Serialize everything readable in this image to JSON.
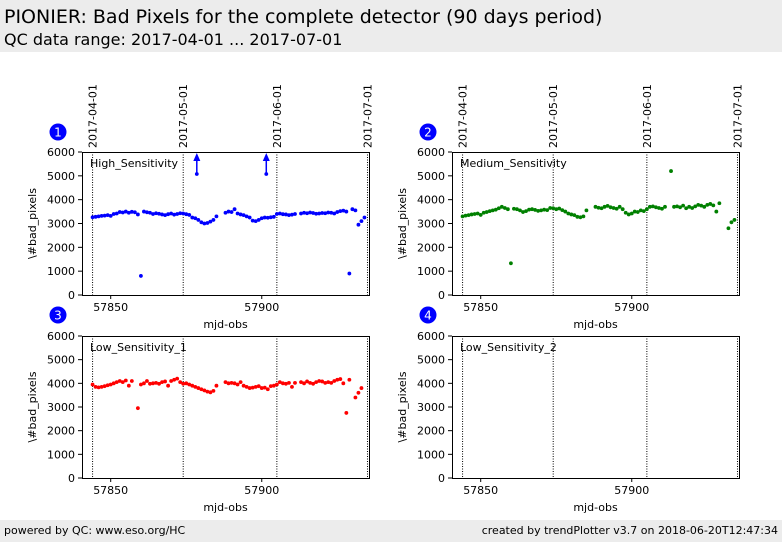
{
  "header": {
    "title": "PIONIER: Bad Pixels for the complete detector (90 days period)",
    "subtitle": "QC data range: 2017-04-01 ... 2017-07-01"
  },
  "footer": {
    "left": "powered by QC: www.eso.org/HC",
    "right": "created by trendPlotter v3.7 on 2018-06-20T12:47:34"
  },
  "chart_data": [
    {
      "type": "scatter",
      "panel_number": "1",
      "label": "High_Sensitivity",
      "color": "#0000ff",
      "xlabel": "mjd-obs",
      "ylabel": "\\#bad_pixels",
      "xlim": [
        57840.5,
        57935.5
      ],
      "ylim": [
        0,
        6000
      ],
      "xticks": [
        57850,
        57900
      ],
      "yticks": [
        0,
        1000,
        2000,
        3000,
        4000,
        5000,
        6000
      ],
      "date_markers": [
        {
          "mjd": 57844,
          "label": "2017-04-01"
        },
        {
          "mjd": 57874,
          "label": "2017-05-01"
        },
        {
          "mjd": 57905,
          "label": "2017-06-01"
        },
        {
          "mjd": 57935,
          "label": "2017-07-01"
        }
      ],
      "arrows": [
        57878.5,
        57901.5
      ],
      "points": [
        [
          57844,
          3260
        ],
        [
          57845,
          3280
        ],
        [
          57846,
          3300
        ],
        [
          57847,
          3320
        ],
        [
          57848,
          3330
        ],
        [
          57849,
          3350
        ],
        [
          57850,
          3320
        ],
        [
          57851,
          3400
        ],
        [
          57852,
          3420
        ],
        [
          57853,
          3480
        ],
        [
          57854,
          3460
        ],
        [
          57855,
          3500
        ],
        [
          57856,
          3450
        ],
        [
          57857,
          3490
        ],
        [
          57858,
          3470
        ],
        [
          57859,
          3380
        ],
        [
          57860,
          800
        ],
        [
          57861,
          3500
        ],
        [
          57862,
          3470
        ],
        [
          57863,
          3450
        ],
        [
          57864,
          3400
        ],
        [
          57865,
          3430
        ],
        [
          57866,
          3410
        ],
        [
          57867,
          3380
        ],
        [
          57868,
          3350
        ],
        [
          57869,
          3390
        ],
        [
          57870,
          3420
        ],
        [
          57871,
          3370
        ],
        [
          57872,
          3400
        ],
        [
          57873,
          3430
        ],
        [
          57874,
          3420
        ],
        [
          57875,
          3390
        ],
        [
          57876,
          3360
        ],
        [
          57877,
          3250
        ],
        [
          57878,
          3220
        ],
        [
          57879,
          3150
        ],
        [
          57880,
          3050
        ],
        [
          57881,
          3000
        ],
        [
          57882,
          3020
        ],
        [
          57883,
          3080
        ],
        [
          57884,
          3150
        ],
        [
          57885,
          3300
        ],
        [
          57888,
          3450
        ],
        [
          57889,
          3500
        ],
        [
          57890,
          3480
        ],
        [
          57891,
          3600
        ],
        [
          57892,
          3420
        ],
        [
          57893,
          3380
        ],
        [
          57894,
          3350
        ],
        [
          57895,
          3300
        ],
        [
          57896,
          3250
        ],
        [
          57897,
          3120
        ],
        [
          57898,
          3100
        ],
        [
          57899,
          3150
        ],
        [
          57900,
          3220
        ],
        [
          57901,
          3250
        ],
        [
          57902,
          3240
        ],
        [
          57903,
          3260
        ],
        [
          57904,
          3280
        ],
        [
          57905,
          3400
        ],
        [
          57906,
          3420
        ],
        [
          57907,
          3390
        ],
        [
          57908,
          3380
        ],
        [
          57909,
          3350
        ],
        [
          57910,
          3370
        ],
        [
          57911,
          3400
        ],
        [
          57913,
          3420
        ],
        [
          57914,
          3450
        ],
        [
          57915,
          3430
        ],
        [
          57916,
          3460
        ],
        [
          57917,
          3440
        ],
        [
          57918,
          3410
        ],
        [
          57919,
          3420
        ],
        [
          57920,
          3440
        ],
        [
          57921,
          3430
        ],
        [
          57922,
          3460
        ],
        [
          57923,
          3450
        ],
        [
          57924,
          3420
        ],
        [
          57925,
          3480
        ],
        [
          57926,
          3520
        ],
        [
          57927,
          3540
        ],
        [
          57928,
          3500
        ],
        [
          57929,
          900
        ],
        [
          57930,
          3600
        ],
        [
          57931,
          3550
        ],
        [
          57932,
          2950
        ],
        [
          57933,
          3100
        ],
        [
          57934,
          3250
        ]
      ]
    },
    {
      "type": "scatter",
      "panel_number": "2",
      "label": "Medium_Sensitivity",
      "color": "#008000",
      "xlabel": "mjd-obs",
      "ylabel": "\\#bad_pixels",
      "xlim": [
        57840.5,
        57935.5
      ],
      "ylim": [
        0,
        6000
      ],
      "xticks": [
        57850,
        57900
      ],
      "yticks": [
        0,
        1000,
        2000,
        3000,
        4000,
        5000,
        6000
      ],
      "date_markers": [
        {
          "mjd": 57844,
          "label": "2017-04-01"
        },
        {
          "mjd": 57874,
          "label": "2017-05-01"
        },
        {
          "mjd": 57905,
          "label": "2017-06-01"
        },
        {
          "mjd": 57935,
          "label": "2017-07-01"
        }
      ],
      "arrows": [],
      "points": [
        [
          57844,
          3300
        ],
        [
          57845,
          3330
        ],
        [
          57846,
          3350
        ],
        [
          57847,
          3380
        ],
        [
          57848,
          3400
        ],
        [
          57849,
          3420
        ],
        [
          57850,
          3360
        ],
        [
          57851,
          3450
        ],
        [
          57852,
          3480
        ],
        [
          57853,
          3520
        ],
        [
          57854,
          3550
        ],
        [
          57855,
          3580
        ],
        [
          57856,
          3640
        ],
        [
          57857,
          3700
        ],
        [
          57858,
          3650
        ],
        [
          57859,
          3600
        ],
        [
          57860,
          1330
        ],
        [
          57861,
          3620
        ],
        [
          57862,
          3600
        ],
        [
          57863,
          3550
        ],
        [
          57864,
          3480
        ],
        [
          57865,
          3520
        ],
        [
          57866,
          3580
        ],
        [
          57867,
          3600
        ],
        [
          57868,
          3570
        ],
        [
          57869,
          3530
        ],
        [
          57870,
          3550
        ],
        [
          57871,
          3580
        ],
        [
          57872,
          3560
        ],
        [
          57873,
          3650
        ],
        [
          57874,
          3640
        ],
        [
          57875,
          3600
        ],
        [
          57876,
          3630
        ],
        [
          57877,
          3560
        ],
        [
          57878,
          3500
        ],
        [
          57879,
          3420
        ],
        [
          57880,
          3380
        ],
        [
          57881,
          3350
        ],
        [
          57882,
          3280
        ],
        [
          57883,
          3260
        ],
        [
          57884,
          3300
        ],
        [
          57885,
          3550
        ],
        [
          57888,
          3700
        ],
        [
          57889,
          3660
        ],
        [
          57890,
          3640
        ],
        [
          57891,
          3700
        ],
        [
          57892,
          3740
        ],
        [
          57893,
          3680
        ],
        [
          57894,
          3650
        ],
        [
          57895,
          3620
        ],
        [
          57896,
          3700
        ],
        [
          57897,
          3600
        ],
        [
          57898,
          3450
        ],
        [
          57899,
          3380
        ],
        [
          57900,
          3420
        ],
        [
          57901,
          3500
        ],
        [
          57902,
          3480
        ],
        [
          57903,
          3550
        ],
        [
          57904,
          3520
        ],
        [
          57905,
          3600
        ],
        [
          57906,
          3700
        ],
        [
          57907,
          3720
        ],
        [
          57908,
          3680
        ],
        [
          57909,
          3650
        ],
        [
          57910,
          3620
        ],
        [
          57911,
          3700
        ],
        [
          57913,
          5200
        ],
        [
          57914,
          3700
        ],
        [
          57915,
          3720
        ],
        [
          57916,
          3680
        ],
        [
          57917,
          3750
        ],
        [
          57918,
          3640
        ],
        [
          57919,
          3700
        ],
        [
          57920,
          3650
        ],
        [
          57921,
          3720
        ],
        [
          57922,
          3780
        ],
        [
          57923,
          3750
        ],
        [
          57924,
          3700
        ],
        [
          57925,
          3780
        ],
        [
          57926,
          3820
        ],
        [
          57927,
          3760
        ],
        [
          57928,
          3500
        ],
        [
          57929,
          3850
        ],
        [
          57932,
          2800
        ],
        [
          57933,
          3050
        ],
        [
          57934,
          3150
        ]
      ]
    },
    {
      "type": "scatter",
      "panel_number": "3",
      "label": "Low_Sensitivity_1",
      "color": "#ff0000",
      "xlabel": "mjd-obs",
      "ylabel": "\\#bad_pixels",
      "xlim": [
        57840.5,
        57935.5
      ],
      "ylim": [
        0,
        6000
      ],
      "xticks": [
        57850,
        57900
      ],
      "yticks": [
        0,
        1000,
        2000,
        3000,
        4000,
        5000,
        6000
      ],
      "date_markers": [
        {
          "mjd": 57844,
          "label": "2017-04-01"
        },
        {
          "mjd": 57874,
          "label": "2017-05-01"
        },
        {
          "mjd": 57905,
          "label": "2017-06-01"
        },
        {
          "mjd": 57935,
          "label": "2017-07-01"
        }
      ],
      "arrows": [],
      "points": [
        [
          57844,
          3950
        ],
        [
          57845,
          3850
        ],
        [
          57846,
          3830
        ],
        [
          57847,
          3850
        ],
        [
          57848,
          3880
        ],
        [
          57849,
          3920
        ],
        [
          57850,
          3950
        ],
        [
          57851,
          4000
        ],
        [
          57852,
          4050
        ],
        [
          57853,
          4100
        ],
        [
          57854,
          4050
        ],
        [
          57855,
          4120
        ],
        [
          57856,
          3900
        ],
        [
          57857,
          4100
        ],
        [
          57859,
          2950
        ],
        [
          57860,
          3950
        ],
        [
          57861,
          4000
        ],
        [
          57862,
          4100
        ],
        [
          57863,
          3980
        ],
        [
          57864,
          4000
        ],
        [
          57865,
          4020
        ],
        [
          57866,
          3980
        ],
        [
          57867,
          4050
        ],
        [
          57868,
          4080
        ],
        [
          57869,
          3900
        ],
        [
          57870,
          4100
        ],
        [
          57871,
          4150
        ],
        [
          57872,
          4200
        ],
        [
          57873,
          4050
        ],
        [
          57874,
          3980
        ],
        [
          57875,
          4000
        ],
        [
          57876,
          3950
        ],
        [
          57877,
          3900
        ],
        [
          57878,
          3850
        ],
        [
          57879,
          3800
        ],
        [
          57880,
          3750
        ],
        [
          57881,
          3700
        ],
        [
          57882,
          3650
        ],
        [
          57883,
          3620
        ],
        [
          57884,
          3680
        ],
        [
          57885,
          3900
        ],
        [
          57888,
          4050
        ],
        [
          57889,
          4000
        ],
        [
          57890,
          4020
        ],
        [
          57891,
          4000
        ],
        [
          57892,
          3950
        ],
        [
          57893,
          4050
        ],
        [
          57894,
          3900
        ],
        [
          57895,
          3850
        ],
        [
          57896,
          3800
        ],
        [
          57897,
          3820
        ],
        [
          57898,
          3850
        ],
        [
          57899,
          3880
        ],
        [
          57900,
          3800
        ],
        [
          57901,
          3820
        ],
        [
          57902,
          3750
        ],
        [
          57903,
          3880
        ],
        [
          57904,
          3900
        ],
        [
          57905,
          3950
        ],
        [
          57906,
          4050
        ],
        [
          57907,
          4000
        ],
        [
          57908,
          3980
        ],
        [
          57909,
          4020
        ],
        [
          57910,
          3850
        ],
        [
          57911,
          4020
        ],
        [
          57913,
          4050
        ],
        [
          57914,
          4000
        ],
        [
          57915,
          4080
        ],
        [
          57916,
          4020
        ],
        [
          57917,
          3980
        ],
        [
          57918,
          4050
        ],
        [
          57919,
          4100
        ],
        [
          57920,
          4080
        ],
        [
          57921,
          4020
        ],
        [
          57922,
          4050
        ],
        [
          57923,
          4020
        ],
        [
          57924,
          4100
        ],
        [
          57925,
          4150
        ],
        [
          57926,
          4180
        ],
        [
          57927,
          4000
        ],
        [
          57928,
          2750
        ],
        [
          57929,
          4150
        ],
        [
          57931,
          3400
        ],
        [
          57932,
          3600
        ],
        [
          57933,
          3800
        ]
      ]
    },
    {
      "type": "scatter",
      "panel_number": "4",
      "label": "Low_Sensitivity_2",
      "color": "#000000",
      "xlabel": "mjd-obs",
      "ylabel": "\\#bad_pixels",
      "xlim": [
        57840.5,
        57935.5
      ],
      "ylim": [
        0,
        6000
      ],
      "xticks": [
        57850,
        57900
      ],
      "yticks": [
        0,
        1000,
        2000,
        3000,
        4000,
        5000,
        6000
      ],
      "date_markers": [
        {
          "mjd": 57844,
          "label": ""
        },
        {
          "mjd": 57874,
          "label": ""
        },
        {
          "mjd": 57905,
          "label": ""
        },
        {
          "mjd": 57935,
          "label": ""
        }
      ],
      "arrows": [],
      "points": []
    }
  ]
}
